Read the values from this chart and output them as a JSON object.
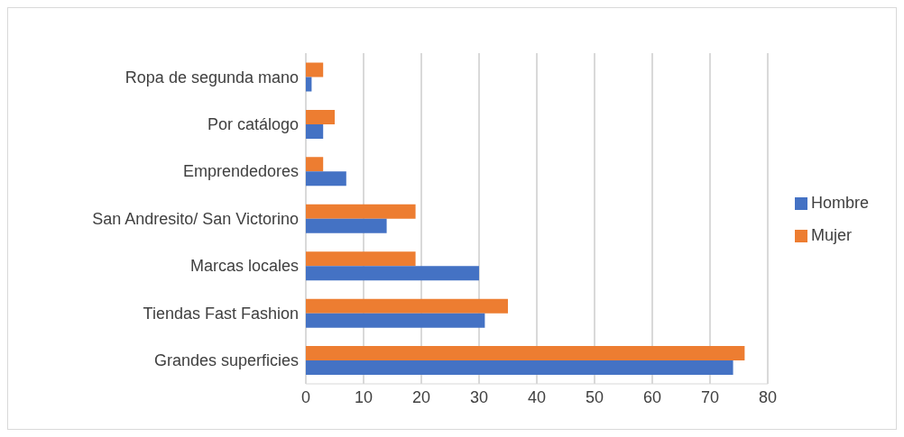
{
  "chart_data": {
    "type": "bar",
    "orientation": "horizontal",
    "categories": [
      "Ropa de segunda mano",
      "Por catálogo",
      "Emprendedores",
      "San Andresito/ San Victorino",
      "Marcas locales",
      "Tiendas Fast Fashion",
      "Grandes superficies"
    ],
    "series": [
      {
        "name": "Mujer",
        "color": "#ed7d31",
        "values": [
          3,
          5,
          3,
          19,
          19,
          35,
          76
        ]
      },
      {
        "name": "Hombre",
        "color": "#4472c4",
        "values": [
          1,
          3,
          7,
          14,
          30,
          31,
          74
        ]
      }
    ],
    "xlim": [
      0,
      80
    ],
    "xticks": [
      0,
      10,
      20,
      30,
      40,
      50,
      60,
      70,
      80
    ],
    "grid": "x",
    "legend": "right"
  }
}
